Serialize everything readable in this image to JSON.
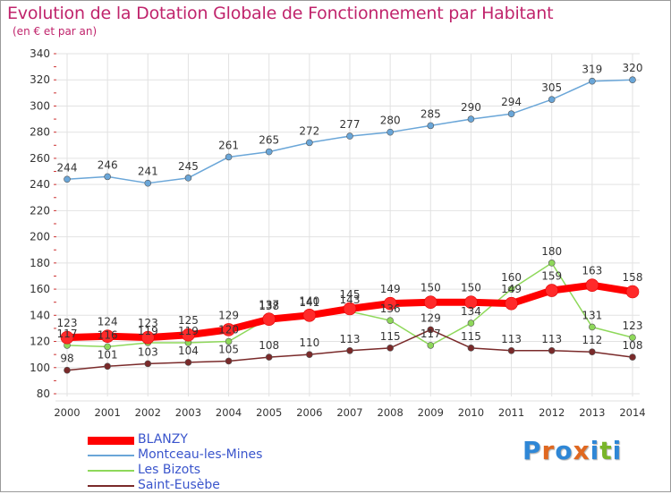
{
  "title": "Evolution de la Dotation Globale de Fonctionnement par Habitant",
  "subtitle": "(en € et par an)",
  "logo": {
    "text": "Proxiti",
    "letter_colors": [
      "#2f87d6",
      "#e06820",
      "#2f87d6",
      "#e06820",
      "#2f87d6",
      "#79b52a",
      "#2f87d6"
    ]
  },
  "chart_data": {
    "type": "line",
    "x": [
      "2000",
      "2001",
      "2002",
      "2003",
      "2004",
      "2005",
      "2006",
      "2007",
      "2008",
      "2009",
      "2010",
      "2011",
      "2012",
      "2013",
      "2014"
    ],
    "ylim": [
      80,
      340
    ],
    "yticks": [
      80,
      100,
      120,
      140,
      160,
      180,
      200,
      220,
      240,
      260,
      280,
      300,
      320,
      340
    ],
    "grid": true,
    "legend_position": "bottom-left",
    "series": [
      {
        "name": "BLANZY",
        "color": "#ff0000",
        "values": [
          123,
          124,
          123,
          125,
          129,
          137,
          140,
          145,
          149,
          150,
          150,
          149,
          159,
          163,
          158
        ]
      },
      {
        "name": "Montceau-les-Mines",
        "color": "#6aa6d8",
        "values": [
          244,
          246,
          241,
          245,
          261,
          265,
          272,
          277,
          280,
          285,
          290,
          294,
          305,
          319,
          320
        ]
      },
      {
        "name": "Les Bizots",
        "color": "#8ed85a",
        "values": [
          117,
          116,
          119,
          119,
          120,
          138,
          141,
          143,
          136,
          117,
          134,
          160,
          180,
          131,
          123
        ]
      },
      {
        "name": "Saint-Eusèbe",
        "color": "#7a2a2a",
        "values": [
          98,
          101,
          103,
          104,
          105,
          108,
          110,
          113,
          115,
          129,
          115,
          113,
          113,
          112,
          108
        ]
      }
    ]
  }
}
